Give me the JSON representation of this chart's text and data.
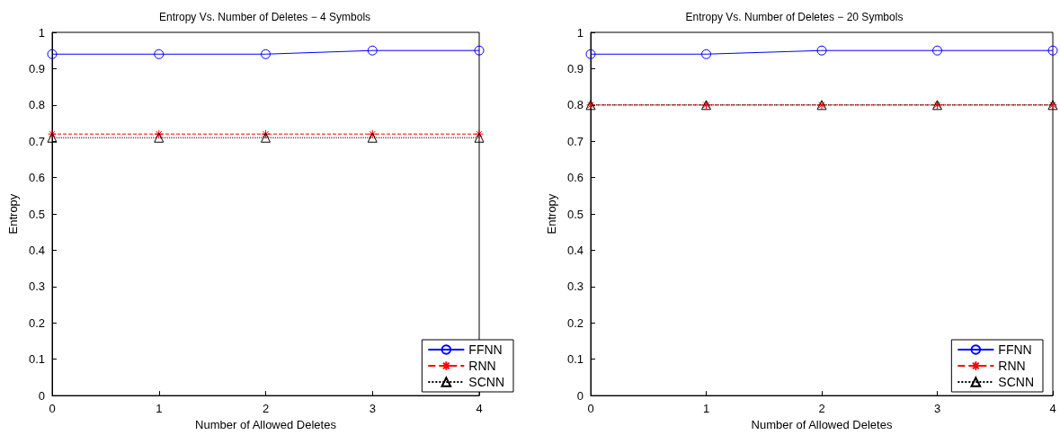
{
  "chart_data": [
    {
      "type": "line",
      "title": "Entropy Vs. Number of Deletes − 4 Symbols",
      "xlabel": "Number of Allowed Deletes",
      "ylabel": "Entropy",
      "x": [
        0,
        1,
        2,
        3,
        4
      ],
      "xlim": [
        0,
        4
      ],
      "xticks": [
        0,
        1,
        2,
        3,
        4
      ],
      "ylim": [
        0,
        1
      ],
      "yticks": [
        0,
        0.1,
        0.2,
        0.3,
        0.4,
        0.5,
        0.6,
        0.7,
        0.8,
        0.9,
        1
      ],
      "grid": false,
      "legend": "bottom right",
      "series": [
        {
          "name": "FFNN",
          "color": "#0000ff",
          "marker": "circle",
          "line_style": "solid",
          "values": [
            0.94,
            0.94,
            0.94,
            0.95,
            0.95
          ]
        },
        {
          "name": "RNN",
          "color": "#ff0000",
          "marker": "cross",
          "line_style": "dashed",
          "values": [
            0.72,
            0.72,
            0.72,
            0.72,
            0.72
          ]
        },
        {
          "name": "SCNN",
          "color": "#000000",
          "marker": "triangle",
          "line_style": "dotted",
          "values": [
            0.71,
            0.71,
            0.71,
            0.71,
            0.71
          ]
        }
      ]
    },
    {
      "type": "line",
      "title": "Entropy Vs. Number of Deletes − 20 Symbols",
      "xlabel": "Number of Allowed Deletes",
      "ylabel": "Entropy",
      "x": [
        0,
        1,
        2,
        3,
        4
      ],
      "xlim": [
        0,
        4
      ],
      "xticks": [
        0,
        1,
        2,
        3,
        4
      ],
      "ylim": [
        0,
        1
      ],
      "yticks": [
        0,
        0.1,
        0.2,
        0.3,
        0.4,
        0.5,
        0.6,
        0.7,
        0.8,
        0.9,
        1
      ],
      "grid": false,
      "legend": "bottom right",
      "series": [
        {
          "name": "FFNN",
          "color": "#0000ff",
          "marker": "circle",
          "line_style": "solid",
          "values": [
            0.94,
            0.94,
            0.95,
            0.95,
            0.95
          ]
        },
        {
          "name": "RNN",
          "color": "#ff0000",
          "marker": "cross",
          "line_style": "dashed",
          "values": [
            0.8,
            0.8,
            0.8,
            0.8,
            0.8
          ]
        },
        {
          "name": "SCNN",
          "color": "#000000",
          "marker": "triangle",
          "line_style": "dotted",
          "values": [
            0.8,
            0.8,
            0.8,
            0.8,
            0.8
          ]
        }
      ]
    }
  ]
}
